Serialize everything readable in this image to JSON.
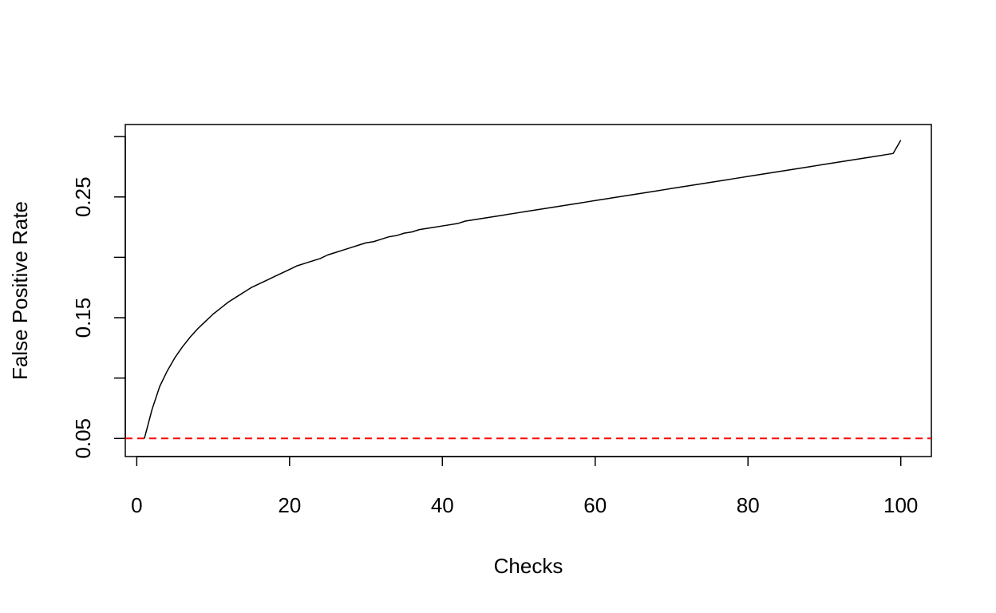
{
  "chart_data": {
    "type": "line",
    "title": "",
    "xlabel": "Checks",
    "ylabel": "False Positive Rate",
    "xlim": [
      -1.5,
      104
    ],
    "ylim": [
      0.035,
      0.31
    ],
    "x_ticks": [
      0,
      20,
      40,
      60,
      80,
      100
    ],
    "x_tick_labels": [
      "0",
      "20",
      "40",
      "60",
      "80",
      "100"
    ],
    "y_ticks": [
      0.05,
      0.1,
      0.15,
      0.2,
      0.25,
      0.3
    ],
    "y_tick_labels": [
      "0.05",
      "",
      "0.15",
      "",
      "0.25",
      ""
    ],
    "grid": false,
    "series": [
      {
        "color": "#000000",
        "x": [
          1,
          2,
          3,
          4,
          5,
          6,
          7,
          8,
          9,
          10,
          11,
          12,
          13,
          14,
          15,
          16,
          17,
          18,
          19,
          20,
          21,
          22,
          23,
          24,
          25,
          26,
          27,
          28,
          29,
          30,
          31,
          32,
          33,
          34,
          35,
          36,
          37,
          38,
          39,
          40,
          41,
          42,
          43,
          44,
          45,
          46,
          47,
          48,
          49,
          50,
          51,
          52,
          53,
          54,
          55,
          56,
          57,
          58,
          59,
          60,
          61,
          62,
          63,
          64,
          65,
          66,
          67,
          68,
          69,
          70,
          71,
          72,
          73,
          74,
          75,
          76,
          77,
          78,
          79,
          80,
          81,
          82,
          83,
          84,
          85,
          86,
          87,
          88,
          89,
          90,
          91,
          92,
          93,
          94,
          95,
          96,
          97,
          98,
          99,
          100
        ],
        "y": [
          0.05,
          0.074,
          0.093,
          0.106,
          0.117,
          0.126,
          0.134,
          0.141,
          0.147,
          0.153,
          0.158,
          0.163,
          0.167,
          0.171,
          0.175,
          0.178,
          0.181,
          0.184,
          0.187,
          0.19,
          0.193,
          0.195,
          0.197,
          0.199,
          0.202,
          0.204,
          0.206,
          0.208,
          0.21,
          0.212,
          0.213,
          0.215,
          0.217,
          0.218,
          0.22,
          0.221,
          0.223,
          0.224,
          0.225,
          0.226,
          0.227,
          0.228,
          0.23,
          0.231,
          0.232,
          0.233,
          0.234,
          0.235,
          0.236,
          0.237,
          0.238,
          0.239,
          0.24,
          0.241,
          0.242,
          0.243,
          0.244,
          0.245,
          0.246,
          0.247,
          0.248,
          0.249,
          0.25,
          0.251,
          0.252,
          0.253,
          0.254,
          0.255,
          0.256,
          0.257,
          0.258,
          0.259,
          0.26,
          0.261,
          0.262,
          0.263,
          0.264,
          0.265,
          0.266,
          0.267,
          0.268,
          0.269,
          0.27,
          0.271,
          0.272,
          0.273,
          0.274,
          0.275,
          0.276,
          0.277,
          0.278,
          0.279,
          0.28,
          0.281,
          0.282,
          0.283,
          0.284,
          0.285,
          0.286,
          0.297
        ]
      }
    ],
    "reference_lines": [
      {
        "y": 0.05,
        "color": "#ff0000",
        "style": "dashed"
      }
    ]
  }
}
